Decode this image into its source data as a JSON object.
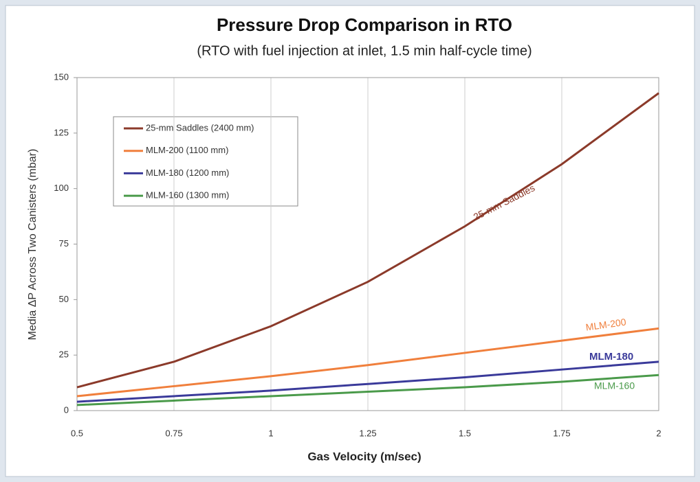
{
  "chart_data": {
    "type": "line",
    "title": "Pressure Drop Comparison in RTO",
    "subtitle": "(RTO with fuel injection at inlet, 1.5 min half-cycle time)",
    "x_label": "Gas Velocity (m/sec)",
    "y_label": "Media ΔP Across Two Canisters (mbar)",
    "x": [
      0.5,
      0.75,
      1,
      1.25,
      1.5,
      1.75,
      2
    ],
    "xlim": [
      0.5,
      2
    ],
    "xticks": [
      0.5,
      0.75,
      1,
      1.25,
      1.5,
      1.75,
      2
    ],
    "ylim": [
      0,
      150
    ],
    "yticks": [
      0,
      25,
      50,
      75,
      100,
      125,
      150
    ],
    "grid": "x",
    "legend": "upper left",
    "series": [
      {
        "name": "25-mm Saddles (2400 mm)",
        "color": "#8b3a2a",
        "values": [
          10.5,
          22,
          38,
          58,
          83,
          111,
          143
        ]
      },
      {
        "name": "MLM-200 (1100 mm)",
        "color": "#f07f3c",
        "values": [
          6.5,
          11,
          15.5,
          20.5,
          26,
          31.5,
          37
        ]
      },
      {
        "name": "MLM-180 (1200 mm)",
        "color": "#3a3a9a",
        "values": [
          4,
          6.5,
          9,
          12,
          15,
          18.5,
          22
        ]
      },
      {
        "name": "MLM-160 (1300 mm)",
        "color": "#4a9a4a",
        "values": [
          2.5,
          4.5,
          6.5,
          8.5,
          10.5,
          13,
          16
        ]
      }
    ],
    "annotations": [
      {
        "text": "25-mm Saddles",
        "color": "#8b3a2a"
      },
      {
        "text": "MLM-200",
        "color": "#f07f3c"
      },
      {
        "text": "MLM-180",
        "color": "#3a3a9a"
      },
      {
        "text": "MLM-160",
        "color": "#4a9a4a"
      }
    ]
  }
}
